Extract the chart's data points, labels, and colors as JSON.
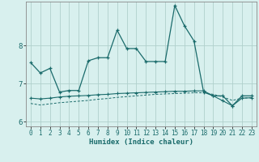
{
  "xlabel": "Humidex (Indice chaleur)",
  "background_color": "#d8f0ee",
  "line_color": "#1a6b6b",
  "grid_color": "#b0d0cc",
  "xlim": [
    -0.5,
    23.5
  ],
  "ylim": [
    5.88,
    9.15
  ],
  "yticks": [
    6,
    7,
    8
  ],
  "xticks": [
    0,
    1,
    2,
    3,
    4,
    5,
    6,
    7,
    8,
    9,
    10,
    11,
    12,
    13,
    14,
    15,
    16,
    17,
    18,
    19,
    20,
    21,
    22,
    23
  ],
  "series1_x": [
    0,
    1,
    2,
    3,
    4,
    5,
    6,
    7,
    8,
    9,
    10,
    11,
    12,
    13,
    14,
    15,
    16,
    17,
    18,
    19,
    20,
    21,
    22,
    23
  ],
  "series1_y": [
    7.55,
    7.28,
    7.4,
    6.78,
    6.82,
    6.82,
    7.6,
    7.68,
    7.68,
    8.4,
    7.92,
    7.92,
    7.58,
    7.58,
    7.58,
    9.05,
    8.52,
    8.12,
    6.78,
    6.68,
    6.68,
    6.42,
    6.68,
    6.68
  ],
  "series2_x": [
    0,
    1,
    2,
    3,
    4,
    5,
    6,
    7,
    8,
    9,
    10,
    11,
    12,
    13,
    14,
    15,
    16,
    17,
    18,
    19,
    20,
    21,
    22,
    23
  ],
  "series2_y": [
    6.62,
    6.6,
    6.62,
    6.65,
    6.67,
    6.68,
    6.69,
    6.71,
    6.72,
    6.74,
    6.75,
    6.76,
    6.77,
    6.78,
    6.79,
    6.8,
    6.8,
    6.81,
    6.81,
    6.68,
    6.55,
    6.42,
    6.62,
    6.63
  ],
  "series3_x": [
    0,
    1,
    2,
    3,
    4,
    5,
    6,
    7,
    8,
    9,
    10,
    11,
    12,
    13,
    14,
    15,
    16,
    17,
    18,
    19,
    20,
    21,
    22,
    23
  ],
  "series3_y": [
    6.48,
    6.44,
    6.47,
    6.5,
    6.52,
    6.54,
    6.56,
    6.59,
    6.61,
    6.64,
    6.66,
    6.68,
    6.7,
    6.72,
    6.73,
    6.74,
    6.75,
    6.76,
    6.76,
    6.72,
    6.65,
    6.56,
    6.62,
    6.63
  ]
}
